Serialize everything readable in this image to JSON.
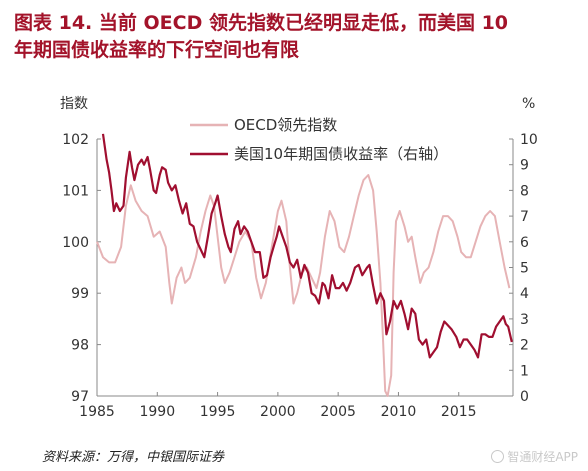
{
  "title": {
    "line1": "图表 14. 当前 OECD 领先指数已经明显走低，而美国 10",
    "line2": "年期国债收益率的下行空间也有限"
  },
  "source": "资料来源：万得，中银国际证券",
  "watermark": "智通财经APP",
  "colors": {
    "title": "#a3132a",
    "oecd": "#e6b3b5",
    "treasury": "#a00f30",
    "axis": "#888888"
  },
  "chart_data": {
    "type": "line",
    "left_unit_label": "指数",
    "right_unit_label": "%",
    "xlim": [
      1985,
      2019.5
    ],
    "ylim_left": [
      97,
      102
    ],
    "ylim_right": [
      0,
      10
    ],
    "x_ticks": [
      "1985",
      "1990",
      "1995",
      "2000",
      "2005",
      "2010",
      "2015"
    ],
    "y_ticks_left": [
      "97",
      "98",
      "99",
      "100",
      "101",
      "102"
    ],
    "y_ticks_right": [
      "0",
      "1",
      "2",
      "3",
      "4",
      "5",
      "6",
      "7",
      "8",
      "9",
      "10"
    ],
    "grid": false,
    "legend_position": "top-center",
    "series": [
      {
        "name": "OECD领先指数",
        "axis": "left",
        "color": "#e6b3b5",
        "points": [
          [
            1985,
            100.0
          ],
          [
            1985.5,
            99.7
          ],
          [
            1986,
            99.6
          ],
          [
            1986.5,
            99.6
          ],
          [
            1987,
            99.9
          ],
          [
            1987.4,
            100.7
          ],
          [
            1987.8,
            101.1
          ],
          [
            1988.2,
            100.8
          ],
          [
            1988.7,
            100.6
          ],
          [
            1989.2,
            100.5
          ],
          [
            1989.7,
            100.1
          ],
          [
            1990.2,
            100.2
          ],
          [
            1990.7,
            99.9
          ],
          [
            1991.0,
            99.2
          ],
          [
            1991.2,
            98.8
          ],
          [
            1991.6,
            99.3
          ],
          [
            1992.0,
            99.5
          ],
          [
            1992.3,
            99.2
          ],
          [
            1992.7,
            99.3
          ],
          [
            1993.2,
            99.7
          ],
          [
            1993.6,
            100.2
          ],
          [
            1994.0,
            100.6
          ],
          [
            1994.4,
            100.9
          ],
          [
            1994.7,
            100.7
          ],
          [
            1995.0,
            100.1
          ],
          [
            1995.3,
            99.5
          ],
          [
            1995.6,
            99.2
          ],
          [
            1996.0,
            99.4
          ],
          [
            1996.4,
            99.7
          ],
          [
            1996.8,
            100.0
          ],
          [
            1997.3,
            100.2
          ],
          [
            1997.8,
            100.0
          ],
          [
            1998.2,
            99.3
          ],
          [
            1998.6,
            98.9
          ],
          [
            1999.0,
            99.2
          ],
          [
            1999.5,
            99.9
          ],
          [
            2000.0,
            100.6
          ],
          [
            2000.3,
            100.8
          ],
          [
            2000.7,
            100.4
          ],
          [
            2001.0,
            99.5
          ],
          [
            2001.3,
            98.8
          ],
          [
            2001.6,
            99.0
          ],
          [
            2002.0,
            99.4
          ],
          [
            2002.4,
            99.5
          ],
          [
            2002.8,
            99.3
          ],
          [
            2003.2,
            99.1
          ],
          [
            2003.5,
            99.4
          ],
          [
            2003.9,
            100.1
          ],
          [
            2004.3,
            100.6
          ],
          [
            2004.7,
            100.4
          ],
          [
            2005.1,
            99.9
          ],
          [
            2005.5,
            99.8
          ],
          [
            2005.9,
            100.1
          ],
          [
            2006.3,
            100.5
          ],
          [
            2006.7,
            100.9
          ],
          [
            2007.1,
            101.2
          ],
          [
            2007.5,
            101.3
          ],
          [
            2007.9,
            101.0
          ],
          [
            2008.2,
            100.2
          ],
          [
            2008.5,
            99.2
          ],
          [
            2008.7,
            98.2
          ],
          [
            2008.9,
            97.1
          ],
          [
            2009.1,
            97.0
          ],
          [
            2009.4,
            97.4
          ],
          [
            2009.6,
            99.4
          ],
          [
            2009.8,
            100.4
          ],
          [
            2010.1,
            100.6
          ],
          [
            2010.5,
            100.3
          ],
          [
            2010.8,
            100.0
          ],
          [
            2011.1,
            100.1
          ],
          [
            2011.4,
            99.7
          ],
          [
            2011.8,
            99.2
          ],
          [
            2012.1,
            99.4
          ],
          [
            2012.5,
            99.5
          ],
          [
            2012.9,
            99.8
          ],
          [
            2013.3,
            100.2
          ],
          [
            2013.7,
            100.5
          ],
          [
            2014.1,
            100.5
          ],
          [
            2014.5,
            100.4
          ],
          [
            2014.9,
            100.1
          ],
          [
            2015.2,
            99.8
          ],
          [
            2015.6,
            99.7
          ],
          [
            2016.0,
            99.7
          ],
          [
            2016.4,
            100.0
          ],
          [
            2016.8,
            100.3
          ],
          [
            2017.2,
            100.5
          ],
          [
            2017.6,
            100.6
          ],
          [
            2018.0,
            100.5
          ],
          [
            2018.4,
            100.0
          ],
          [
            2018.8,
            99.5
          ],
          [
            2019.2,
            99.1
          ]
        ]
      },
      {
        "name": "美国10年期国债收益率（右轴）",
        "axis": "right",
        "color": "#a00f30",
        "points": [
          [
            1985.5,
            10.2
          ],
          [
            1985.8,
            9.2
          ],
          [
            1986.0,
            8.7
          ],
          [
            1986.2,
            8.0
          ],
          [
            1986.4,
            7.2
          ],
          [
            1986.6,
            7.5
          ],
          [
            1986.9,
            7.2
          ],
          [
            1987.2,
            7.4
          ],
          [
            1987.4,
            8.5
          ],
          [
            1987.7,
            9.5
          ],
          [
            1987.9,
            8.9
          ],
          [
            1988.1,
            8.4
          ],
          [
            1988.4,
            9.0
          ],
          [
            1988.7,
            9.2
          ],
          [
            1988.9,
            9.0
          ],
          [
            1989.2,
            9.3
          ],
          [
            1989.4,
            8.8
          ],
          [
            1989.7,
            8.0
          ],
          [
            1989.9,
            7.9
          ],
          [
            1990.2,
            8.6
          ],
          [
            1990.4,
            8.9
          ],
          [
            1990.7,
            8.8
          ],
          [
            1990.9,
            8.3
          ],
          [
            1991.2,
            8.0
          ],
          [
            1991.5,
            8.2
          ],
          [
            1991.8,
            7.6
          ],
          [
            1992.1,
            7.1
          ],
          [
            1992.4,
            7.5
          ],
          [
            1992.7,
            6.7
          ],
          [
            1993.0,
            6.6
          ],
          [
            1993.3,
            6.0
          ],
          [
            1993.7,
            5.6
          ],
          [
            1993.9,
            5.4
          ],
          [
            1994.2,
            6.2
          ],
          [
            1994.5,
            7.1
          ],
          [
            1994.8,
            7.5
          ],
          [
            1995.0,
            7.8
          ],
          [
            1995.3,
            7.0
          ],
          [
            1995.6,
            6.3
          ],
          [
            1995.9,
            5.8
          ],
          [
            1996.1,
            5.6
          ],
          [
            1996.4,
            6.5
          ],
          [
            1996.7,
            6.8
          ],
          [
            1996.9,
            6.3
          ],
          [
            1997.2,
            6.6
          ],
          [
            1997.5,
            6.4
          ],
          [
            1997.8,
            6.0
          ],
          [
            1998.1,
            5.6
          ],
          [
            1998.5,
            5.6
          ],
          [
            1998.8,
            4.6
          ],
          [
            1999.1,
            4.7
          ],
          [
            1999.4,
            5.4
          ],
          [
            1999.7,
            5.9
          ],
          [
            1999.9,
            6.2
          ],
          [
            2000.1,
            6.6
          ],
          [
            2000.4,
            6.2
          ],
          [
            2000.7,
            5.8
          ],
          [
            2001.0,
            5.2
          ],
          [
            2001.3,
            5.0
          ],
          [
            2001.6,
            5.3
          ],
          [
            2001.9,
            4.6
          ],
          [
            2002.2,
            5.1
          ],
          [
            2002.5,
            4.8
          ],
          [
            2002.8,
            4.0
          ],
          [
            2003.1,
            3.9
          ],
          [
            2003.4,
            3.6
          ],
          [
            2003.7,
            4.4
          ],
          [
            2003.9,
            4.3
          ],
          [
            2004.2,
            3.8
          ],
          [
            2004.5,
            4.7
          ],
          [
            2004.8,
            4.2
          ],
          [
            2005.1,
            4.2
          ],
          [
            2005.4,
            4.4
          ],
          [
            2005.7,
            4.1
          ],
          [
            2006.0,
            4.4
          ],
          [
            2006.4,
            5.0
          ],
          [
            2006.7,
            5.1
          ],
          [
            2007.0,
            4.7
          ],
          [
            2007.4,
            5.0
          ],
          [
            2007.6,
            5.1
          ],
          [
            2007.9,
            4.3
          ],
          [
            2008.2,
            3.6
          ],
          [
            2008.5,
            4.0
          ],
          [
            2008.8,
            3.7
          ],
          [
            2009.0,
            2.4
          ],
          [
            2009.3,
            2.9
          ],
          [
            2009.6,
            3.7
          ],
          [
            2009.9,
            3.4
          ],
          [
            2010.2,
            3.7
          ],
          [
            2010.5,
            3.2
          ],
          [
            2010.8,
            2.6
          ],
          [
            2011.1,
            3.4
          ],
          [
            2011.4,
            3.2
          ],
          [
            2011.7,
            2.2
          ],
          [
            2012.0,
            2.0
          ],
          [
            2012.3,
            2.2
          ],
          [
            2012.6,
            1.5
          ],
          [
            2012.9,
            1.7
          ],
          [
            2013.2,
            1.9
          ],
          [
            2013.5,
            2.5
          ],
          [
            2013.8,
            2.9
          ],
          [
            2014.0,
            2.8
          ],
          [
            2014.4,
            2.6
          ],
          [
            2014.8,
            2.3
          ],
          [
            2015.1,
            1.9
          ],
          [
            2015.4,
            2.2
          ],
          [
            2015.7,
            2.2
          ],
          [
            2016.0,
            2.0
          ],
          [
            2016.3,
            1.8
          ],
          [
            2016.6,
            1.5
          ],
          [
            2016.9,
            2.4
          ],
          [
            2017.2,
            2.4
          ],
          [
            2017.5,
            2.3
          ],
          [
            2017.8,
            2.3
          ],
          [
            2018.1,
            2.7
          ],
          [
            2018.4,
            2.9
          ],
          [
            2018.7,
            3.1
          ],
          [
            2018.9,
            2.8
          ],
          [
            2019.1,
            2.7
          ],
          [
            2019.4,
            2.1
          ]
        ]
      }
    ]
  }
}
